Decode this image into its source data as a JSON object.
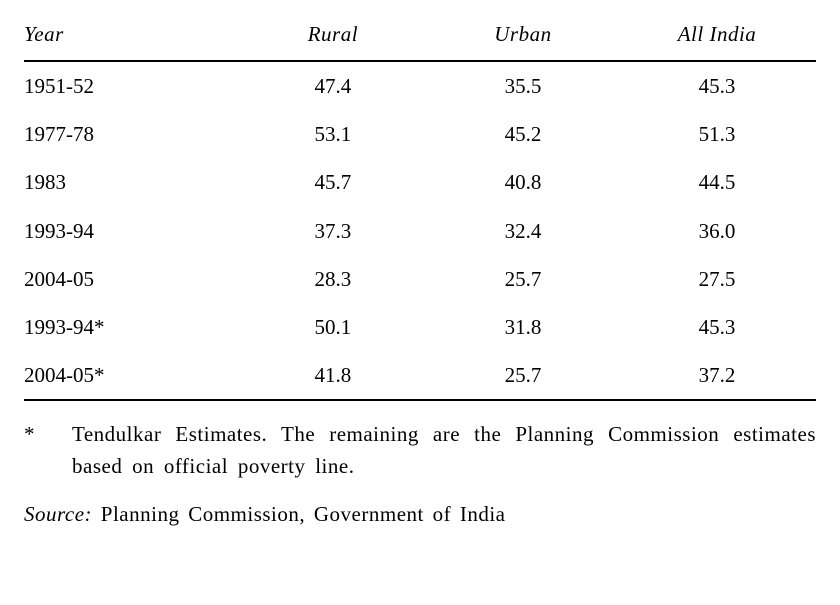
{
  "table": {
    "type": "table",
    "text_color": "#000000",
    "rule_color": "#000000",
    "font_family": "Century Schoolbook",
    "header_fontstyle": "italic",
    "body_fontsize_pt": 16,
    "columns": [
      {
        "key": "year",
        "label": "Year",
        "align": "left",
        "width_pct": 27
      },
      {
        "key": "rural",
        "label": "Rural",
        "align": "center",
        "width_pct": 24
      },
      {
        "key": "urban",
        "label": "Urban",
        "align": "center",
        "width_pct": 24
      },
      {
        "key": "india",
        "label": "All  India",
        "align": "center",
        "width_pct": 25
      }
    ],
    "rows": [
      {
        "year": "1951-52",
        "rural": "47.4",
        "urban": "35.5",
        "india": "45.3"
      },
      {
        "year": "1977-78",
        "rural": "53.1",
        "urban": "45.2",
        "india": "51.3"
      },
      {
        "year": "1983",
        "rural": "45.7",
        "urban": "40.8",
        "india": "44.5"
      },
      {
        "year": "1993-94",
        "rural": "37.3",
        "urban": "32.4",
        "india": "36.0"
      },
      {
        "year": "2004-05",
        "rural": "28.3",
        "urban": "25.7",
        "india": "27.5"
      },
      {
        "year": "1993-94*",
        "rural": "50.1",
        "urban": "31.8",
        "india": "45.3"
      },
      {
        "year": "2004-05*",
        "rural": "41.8",
        "urban": "25.7",
        "india": "37.2"
      }
    ]
  },
  "footnote": {
    "mark": "*",
    "text": "Tendulkar Estimates. The remaining   are the Planning Commission estimates  based  on  official  poverty  line."
  },
  "source": {
    "label": "Source:",
    "text": "Planning Commission, Government of India"
  }
}
